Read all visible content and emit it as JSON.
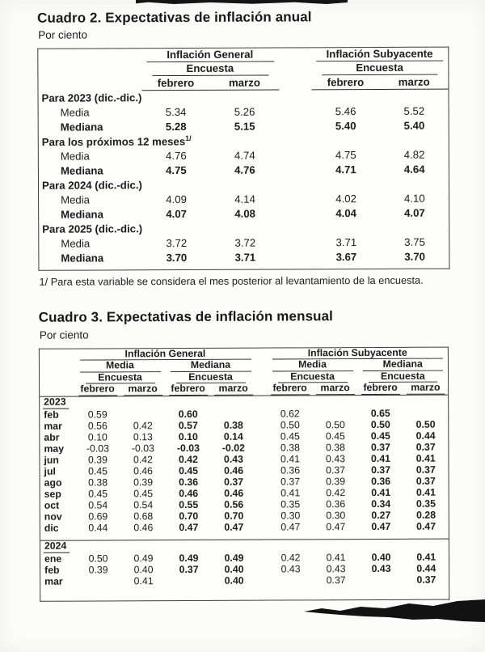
{
  "cuadro2": {
    "title": "Cuadro 2. Expectativas de inflación anual",
    "subtitle": "Por ciento",
    "groups": [
      "Inflación General",
      "Inflación Subyacente"
    ],
    "encuesta": "Encuesta",
    "months": [
      "febrero",
      "marzo"
    ],
    "sections": [
      {
        "label": "Para 2023 (dic.-dic.)",
        "sup": "",
        "rows": [
          {
            "label": "Media",
            "bold": false,
            "values": [
              "5.34",
              "5.26",
              "5.46",
              "5.52"
            ]
          },
          {
            "label": "Mediana",
            "bold": true,
            "values": [
              "5.28",
              "5.15",
              "5.40",
              "5.40"
            ]
          }
        ]
      },
      {
        "label": "Para los próximos 12 meses",
        "sup": "1/",
        "rows": [
          {
            "label": "Media",
            "bold": false,
            "values": [
              "4.76",
              "4.74",
              "4.75",
              "4.82"
            ]
          },
          {
            "label": "Mediana",
            "bold": true,
            "values": [
              "4.75",
              "4.76",
              "4.71",
              "4.64"
            ]
          }
        ]
      },
      {
        "label": "Para 2024 (dic.-dic.)",
        "sup": "",
        "rows": [
          {
            "label": "Media",
            "bold": false,
            "values": [
              "4.09",
              "4.14",
              "4.02",
              "4.10"
            ]
          },
          {
            "label": "Mediana",
            "bold": true,
            "values": [
              "4.07",
              "4.08",
              "4.04",
              "4.07"
            ]
          }
        ]
      },
      {
        "label": "Para 2025 (dic.-dic.)",
        "sup": "",
        "rows": [
          {
            "label": "Media",
            "bold": false,
            "values": [
              "3.72",
              "3.72",
              "3.71",
              "3.75"
            ]
          },
          {
            "label": "Mediana",
            "bold": true,
            "values": [
              "3.70",
              "3.71",
              "3.67",
              "3.70"
            ]
          }
        ]
      }
    ],
    "footnote": "1/ Para esta variable se considera el mes posterior al levantamiento de la encuesta."
  },
  "cuadro3": {
    "title": "Cuadro 3. Expectativas de inflación mensual",
    "subtitle": "Por ciento",
    "groups": [
      "Inflación General",
      "Inflación Subyacente"
    ],
    "stats": [
      "Media",
      "Mediana"
    ],
    "encuesta": "Encuesta",
    "months": [
      "febrero",
      "marzo"
    ],
    "bold_value_cols": [
      2,
      3,
      6,
      7
    ],
    "year_sections": [
      {
        "year": "2023",
        "rows": [
          {
            "label": "feb",
            "values": [
              "0.59",
              "",
              "0.60",
              "",
              "0.62",
              "",
              "0.65",
              ""
            ]
          },
          {
            "label": "mar",
            "values": [
              "0.56",
              "0.42",
              "0.57",
              "0.38",
              "0.50",
              "0.50",
              "0.50",
              "0.50"
            ]
          },
          {
            "label": "abr",
            "values": [
              "0.10",
              "0.13",
              "0.10",
              "0.14",
              "0.45",
              "0.45",
              "0.45",
              "0.44"
            ]
          },
          {
            "label": "may",
            "values": [
              "-0.03",
              "-0.03",
              "-0.03",
              "-0.02",
              "0.38",
              "0.38",
              "0.37",
              "0.37"
            ]
          },
          {
            "label": "jun",
            "values": [
              "0.39",
              "0.42",
              "0.42",
              "0.43",
              "0.41",
              "0.43",
              "0.41",
              "0.41"
            ]
          },
          {
            "label": "jul",
            "values": [
              "0.45",
              "0.46",
              "0.45",
              "0.46",
              "0.36",
              "0.37",
              "0.37",
              "0.37"
            ]
          },
          {
            "label": "ago",
            "values": [
              "0.38",
              "0.39",
              "0.36",
              "0.37",
              "0.37",
              "0.39",
              "0.36",
              "0.37"
            ]
          },
          {
            "label": "sep",
            "values": [
              "0.45",
              "0.45",
              "0.46",
              "0.46",
              "0.41",
              "0.42",
              "0.41",
              "0.41"
            ]
          },
          {
            "label": "oct",
            "values": [
              "0.54",
              "0.54",
              "0.55",
              "0.56",
              "0.35",
              "0.36",
              "0.34",
              "0.35"
            ]
          },
          {
            "label": "nov",
            "values": [
              "0.69",
              "0.68",
              "0.70",
              "0.70",
              "0.30",
              "0.30",
              "0.27",
              "0.28"
            ]
          },
          {
            "label": "dic",
            "values": [
              "0.44",
              "0.46",
              "0.47",
              "0.47",
              "0.47",
              "0.47",
              "0.47",
              "0.47"
            ]
          }
        ]
      },
      {
        "year": "2024",
        "rows": [
          {
            "label": "ene",
            "values": [
              "0.50",
              "0.49",
              "0.49",
              "0.49",
              "0.42",
              "0.41",
              "0.40",
              "0.41"
            ]
          },
          {
            "label": "feb",
            "values": [
              "0.39",
              "0.40",
              "0.37",
              "0.40",
              "0.43",
              "0.43",
              "0.43",
              "0.44"
            ]
          },
          {
            "label": "mar",
            "values": [
              "",
              "0.41",
              "",
              "0.40",
              "",
              "0.37",
              "",
              "0.37"
            ]
          }
        ]
      }
    ]
  }
}
